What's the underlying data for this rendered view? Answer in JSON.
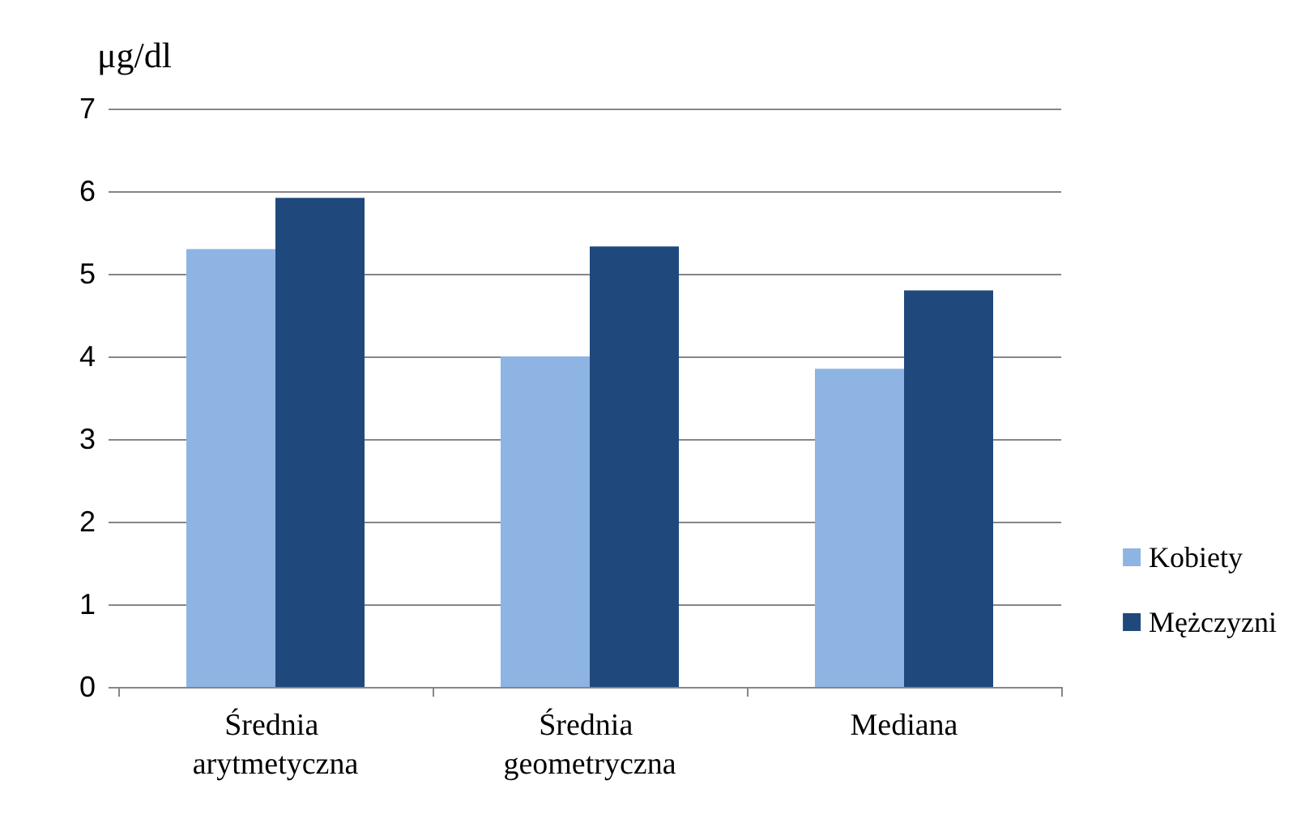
{
  "chart_data": {
    "type": "bar",
    "ylabel": "μg/dl",
    "categories": [
      "Średnia arytmetyczna",
      "Średnia geometryczna",
      "Mediana"
    ],
    "series": [
      {
        "name": "Kobiety",
        "color": "#8eb4e3",
        "values": [
          5.3,
          4.0,
          3.85
        ]
      },
      {
        "name": "Mężczyzni",
        "color": "#1f497d",
        "values": [
          5.92,
          5.33,
          4.8
        ]
      }
    ],
    "ylim": [
      0,
      7
    ],
    "yticks": [
      0,
      1,
      2,
      3,
      4,
      5,
      6,
      7
    ],
    "grid": "y",
    "legend": "right"
  }
}
